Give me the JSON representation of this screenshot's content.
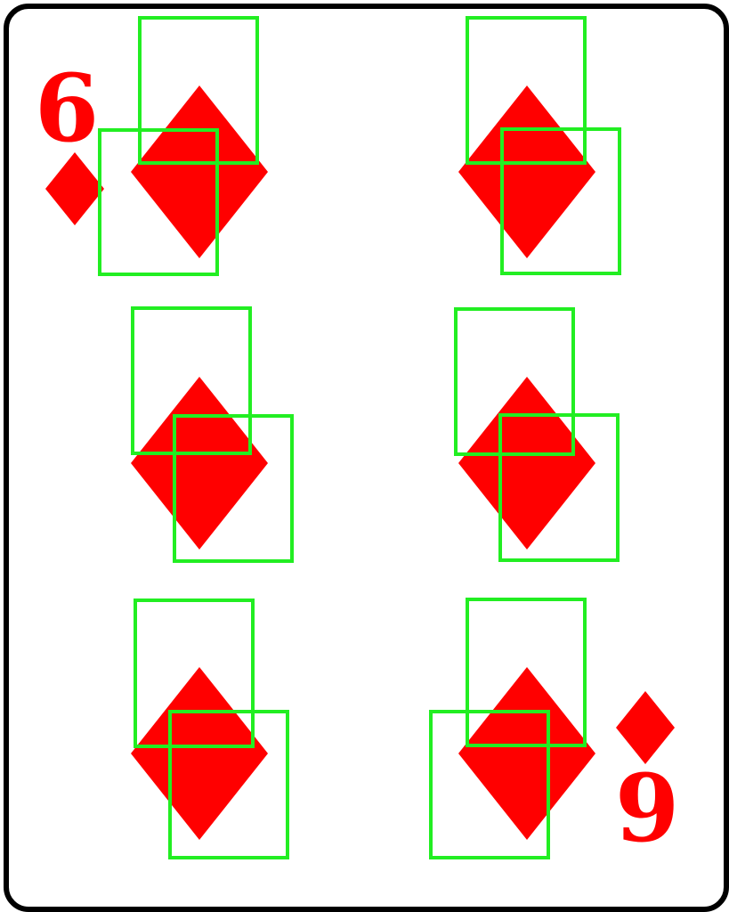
{
  "card": {
    "rank_top": "6",
    "rank_bottom": "9",
    "suit": "diamonds",
    "suit_icon": "diamond-icon",
    "pip_count": 6
  },
  "colors": {
    "suit": "#ff0000",
    "outline": "#000000",
    "background": "#ffffff",
    "highlight_box": "#22ee22"
  }
}
